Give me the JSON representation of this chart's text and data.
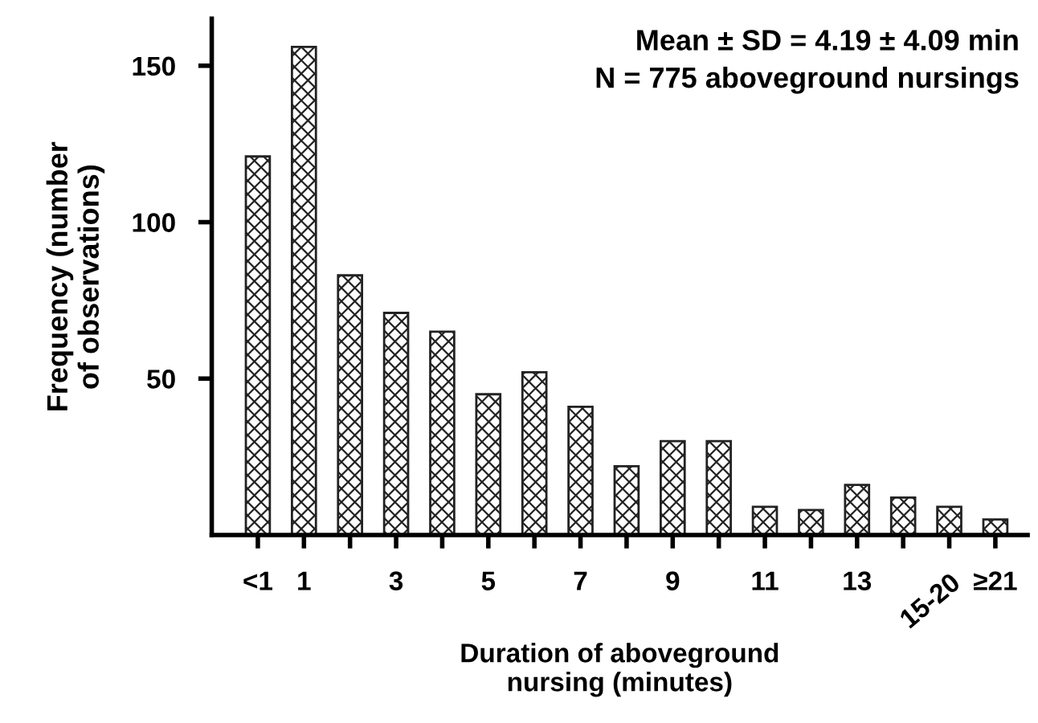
{
  "chart_data": {
    "type": "bar",
    "categories": [
      "<1",
      "1",
      null,
      "3",
      null,
      "5",
      null,
      "7",
      null,
      "9",
      null,
      "11",
      null,
      "13",
      null,
      "15-20",
      "≥21"
    ],
    "values": [
      121,
      156,
      83,
      71,
      65,
      45,
      52,
      41,
      22,
      30,
      30,
      9,
      8,
      16,
      12,
      9,
      5
    ],
    "color": "#222222",
    "xlabel": "Duration of aboveground\nnursing (minutes)",
    "ylabel": "Frequency (number\nof observations)",
    "ylim": [
      0,
      165
    ],
    "yticks": [
      50,
      100,
      150
    ],
    "annotations": [
      "Mean ± SD = 4.19 ± 4.09 min\nN = 775 aboveground nursings"
    ],
    "grid": false,
    "legend": false
  }
}
